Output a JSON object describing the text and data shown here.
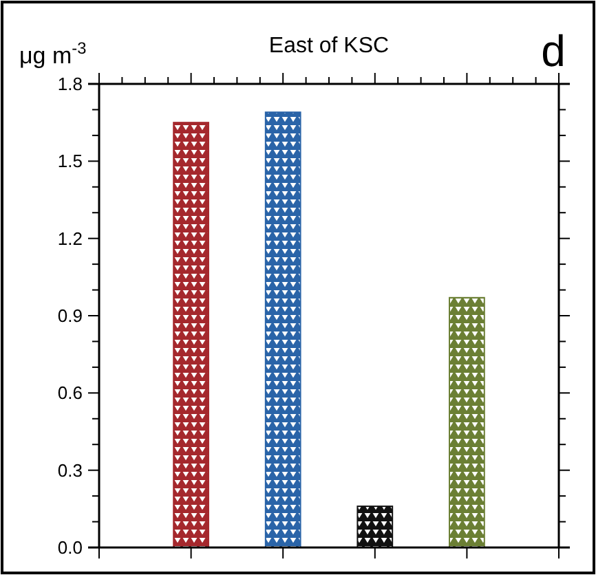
{
  "chart_data": {
    "type": "bar",
    "title": "East of KSC",
    "ylabel": "μg m$^{-3}$",
    "annotations": [
      "d"
    ],
    "categories": [
      null,
      null,
      null,
      null
    ],
    "values": [
      1.65,
      1.69,
      0.16,
      0.97
    ],
    "colors": [
      "#a5282d",
      "#2a64a8",
      "#111111",
      "#6b7f34"
    ],
    "ylim": [
      0,
      1.8
    ],
    "yticks": [
      {
        "value": 0,
        "label": "0.0"
      },
      0.3,
      0.6,
      0.9,
      1.2,
      1.5,
      1.8
    ]
  }
}
